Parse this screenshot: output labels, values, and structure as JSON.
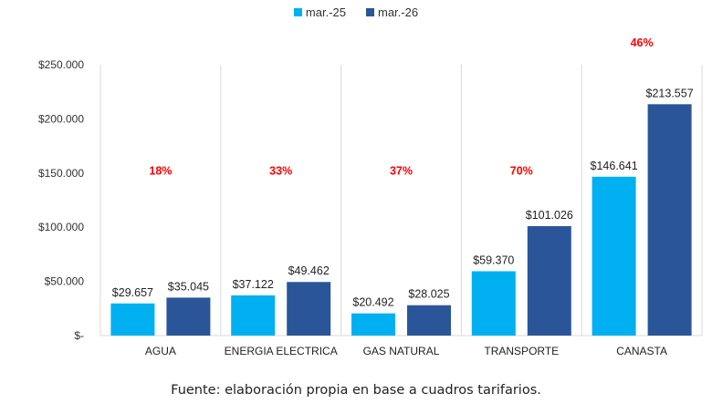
{
  "chart_data": {
    "type": "bar",
    "title": "",
    "xlabel": "",
    "ylabel": "",
    "categories": [
      "AGUA",
      "ENERGIA ELECTRICA",
      "GAS NATURAL",
      "TRANSPORTE",
      "CANASTA"
    ],
    "series": [
      {
        "name": "mar.-25",
        "color": "#00B0F0",
        "values": [
          29657,
          37122,
          20492,
          59370,
          146641
        ],
        "labels": [
          "$29.657",
          "$37.122",
          "$20.492",
          "$59.370",
          "$146.641"
        ]
      },
      {
        "name": "mar.-26",
        "color": "#2A5699",
        "values": [
          35045,
          49462,
          28025,
          101026,
          213557
        ],
        "labels": [
          "$35.045",
          "$49.462",
          "$28.025",
          "$101.026",
          "$213.557"
        ]
      }
    ],
    "ylim": [
      0,
      250000
    ],
    "yticks": [
      0,
      50000,
      100000,
      150000,
      200000,
      250000
    ],
    "ytick_labels": [
      "$-",
      "$50.000",
      "$100.000",
      "$150.000",
      "$200.000",
      "$250.000"
    ],
    "annotations": [
      {
        "category": "AGUA",
        "text": "18%",
        "y": 152000
      },
      {
        "category": "ENERGIA ELECTRICA",
        "text": "33%",
        "y": 152000
      },
      {
        "category": "GAS NATURAL",
        "text": "37%",
        "y": 152000
      },
      {
        "category": "TRANSPORTE",
        "text": "70%",
        "y": 152000
      },
      {
        "category": "CANASTA",
        "text": "46%",
        "y": 270000
      }
    ],
    "annotation_color": "#FF0000",
    "grid": false,
    "category_dividers": true,
    "legend": "top-center"
  },
  "source_note": "Fuente: elaboración propia en base a cuadros tarifarios."
}
